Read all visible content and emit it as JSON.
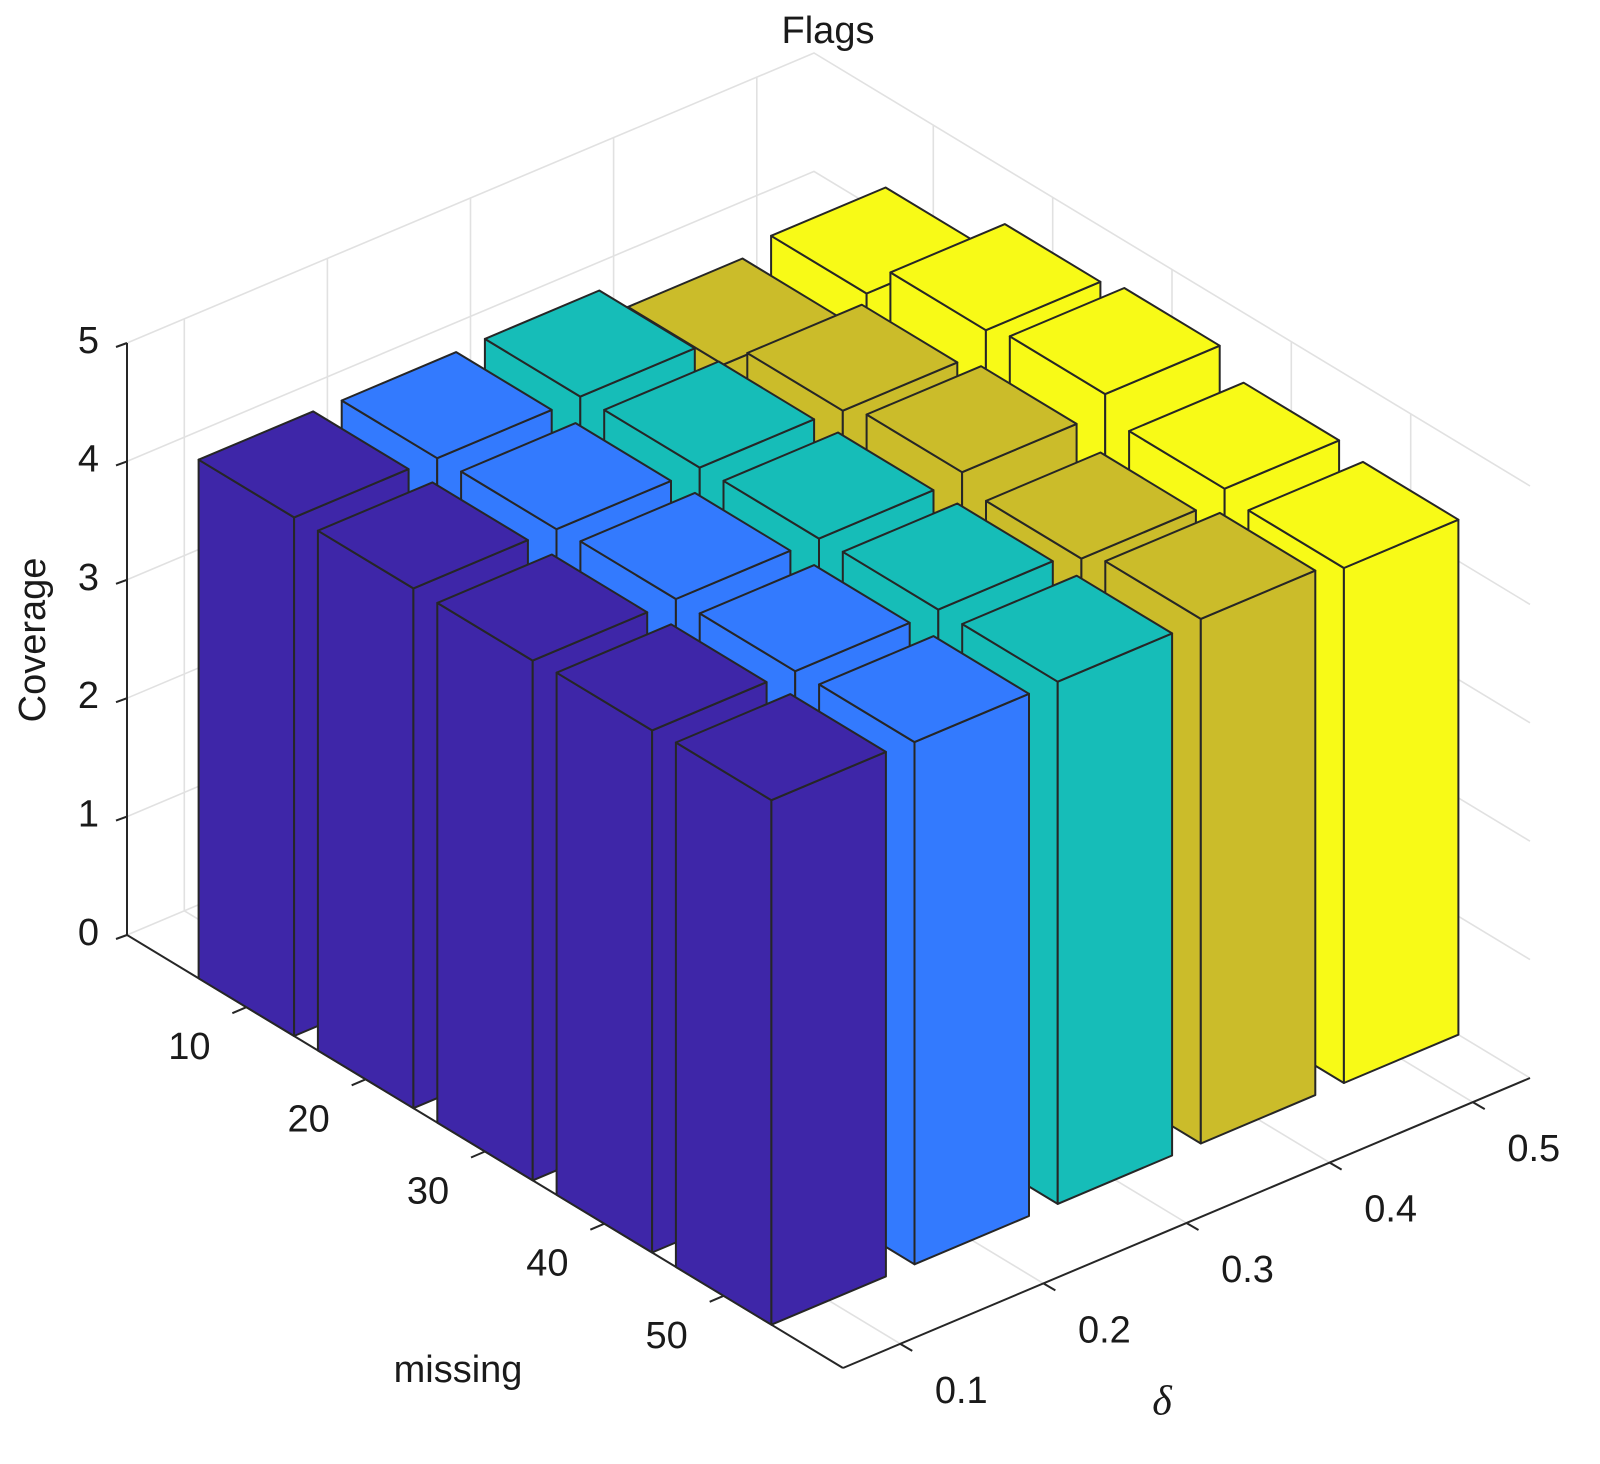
{
  "chart_data": {
    "type": "bar3d",
    "title": "Flags",
    "x_label": "missing",
    "y_label": "δ",
    "z_label": "Coverage",
    "x": [
      10,
      20,
      30,
      40,
      50
    ],
    "y": [
      0.1,
      0.2,
      0.3,
      0.4,
      0.5
    ],
    "xlim": [
      0,
      60
    ],
    "ylim": [
      0.06,
      0.54
    ],
    "zlim": [
      0,
      5
    ],
    "xticks": [
      10,
      20,
      30,
      40,
      50
    ],
    "yticks": [
      0.1,
      0.2,
      0.3,
      0.4,
      0.5
    ],
    "zticks": [
      0,
      1,
      2,
      3,
      4,
      5
    ],
    "grid": true,
    "series": [
      {
        "color": "#3e26a8",
        "values": [
          4.38,
          4.39,
          4.39,
          4.41,
          4.43
        ]
      },
      {
        "color": "#337afe",
        "values": [
          4.37,
          4.38,
          4.4,
          4.4,
          4.41
        ]
      },
      {
        "color": "#16bdb8",
        "values": [
          4.38,
          4.39,
          4.4,
          4.41,
          4.41
        ]
      },
      {
        "color": "#cbbc2a",
        "values": [
          4.14,
          4.36,
          4.45,
          4.33,
          4.43
        ]
      },
      {
        "color": "#f8fa17",
        "values": [
          4.23,
          4.53,
          4.6,
          4.41,
          4.35
        ]
      }
    ]
  }
}
